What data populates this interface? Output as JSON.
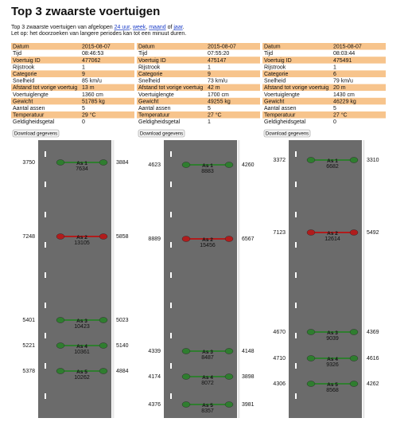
{
  "header": {
    "title": "Top 3 zwaarste voertuigen",
    "intro": [
      "Top 3 zwaarste voertuigen van afgelopen",
      "24 uur",
      ",",
      "week",
      ",",
      "maand",
      "of",
      "jaar",
      "."
    ],
    "note": "Let op: het doorzoeken van langere periodes kan tot een minuut duren."
  },
  "vehicles": [
    {
      "rows": [
        [
          "Datum",
          "2015-08-07"
        ],
        [
          "Tijd",
          "08:46:53"
        ],
        [
          "Voertuig ID",
          "477062"
        ],
        [
          "Rijstrook",
          "1"
        ],
        [
          "Categorie",
          "9"
        ],
        [
          "Snelheid",
          "85 km/u"
        ],
        [
          "Afstand tot vorige voertuig",
          "13 m"
        ],
        [
          "Voertuiglengte",
          "1360 cm"
        ],
        [
          "Gewicht",
          "51785 kg"
        ],
        [
          "Aantal assen",
          "5"
        ],
        [
          "Temperatuur",
          "29 °C"
        ],
        [
          "Geldigheidsgetal",
          "0"
        ]
      ],
      "button": "Download gegevens",
      "axles": [
        {
          "name": "As 1",
          "weight": 7634,
          "left": 3750,
          "right": 3884,
          "color": "#2f7d2f"
        },
        {
          "name": "As 2",
          "weight": 13105,
          "left": 7248,
          "right": 5858,
          "color": "#b01c1c"
        },
        {
          "name": "As 3",
          "weight": 10423,
          "left": 5401,
          "right": 5023,
          "color": "#2f7d2f"
        },
        {
          "name": "As 4",
          "weight": 10361,
          "left": 5221,
          "right": 5140,
          "color": "#2f7d2f"
        },
        {
          "name": "As 5",
          "weight": 10262,
          "left": 5378,
          "right": 4884,
          "color": "#2f7d2f"
        }
      ]
    },
    {
      "rows": [
        [
          "Datum",
          "2015-08-07"
        ],
        [
          "Tijd",
          "07:55:20"
        ],
        [
          "Voertuig ID",
          "475147"
        ],
        [
          "Rijstrook",
          "1"
        ],
        [
          "Categorie",
          "9"
        ],
        [
          "Snelheid",
          "73 km/u"
        ],
        [
          "Afstand tot vorige voertuig",
          "42 m"
        ],
        [
          "Voertuiglengte",
          "1700 cm"
        ],
        [
          "Gewicht",
          "49255 kg"
        ],
        [
          "Aantal assen",
          "5"
        ],
        [
          "Temperatuur",
          "27 °C"
        ],
        [
          "Geldigheidsgetal",
          "1"
        ]
      ],
      "button": "Download gegevens",
      "axles": [
        {
          "name": "As 1",
          "weight": 8883,
          "left": 4623,
          "right": 4260,
          "color": "#2f7d2f"
        },
        {
          "name": "As 2",
          "weight": 15456,
          "left": 8889,
          "right": 6567,
          "color": "#b01c1c"
        },
        {
          "name": "As 3",
          "weight": 8487,
          "left": 4339,
          "right": 4148,
          "color": "#2f7d2f"
        },
        {
          "name": "As 4",
          "weight": 8072,
          "left": 4174,
          "right": 3898,
          "color": "#2f7d2f"
        },
        {
          "name": "As 5",
          "weight": 8357,
          "left": 4376,
          "right": 3981,
          "color": "#2f7d2f"
        }
      ]
    },
    {
      "rows": [
        [
          "Datum",
          "2015-08-07"
        ],
        [
          "Tijd",
          "08:03:44"
        ],
        [
          "Voertuig ID",
          "475491"
        ],
        [
          "Rijstrook",
          "1"
        ],
        [
          "Categorie",
          "6"
        ],
        [
          "Snelheid",
          "79 km/u"
        ],
        [
          "Afstand tot vorige voertuig",
          "20 m"
        ],
        [
          "Voertuiglengte",
          "1430 cm"
        ],
        [
          "Gewicht",
          "46229 kg"
        ],
        [
          "Aantal assen",
          "5"
        ],
        [
          "Temperatuur",
          "27 °C"
        ],
        [
          "Geldigheidsgetal",
          "0"
        ]
      ],
      "button": "Download gegevens",
      "axles": [
        {
          "name": "As 1",
          "weight": 6682,
          "left": 3372,
          "right": 3310,
          "color": "#2f7d2f"
        },
        {
          "name": "As 2",
          "weight": 12614,
          "left": 7123,
          "right": 5492,
          "color": "#b01c1c"
        },
        {
          "name": "As 3",
          "weight": 9039,
          "left": 4670,
          "right": 4369,
          "color": "#2f7d2f"
        },
        {
          "name": "As 4",
          "weight": 9326,
          "left": 4710,
          "right": 4616,
          "color": "#2f7d2f"
        },
        {
          "name": "As 5",
          "weight": 8568,
          "left": 4306,
          "right": 4262,
          "color": "#2f7d2f"
        }
      ]
    }
  ]
}
